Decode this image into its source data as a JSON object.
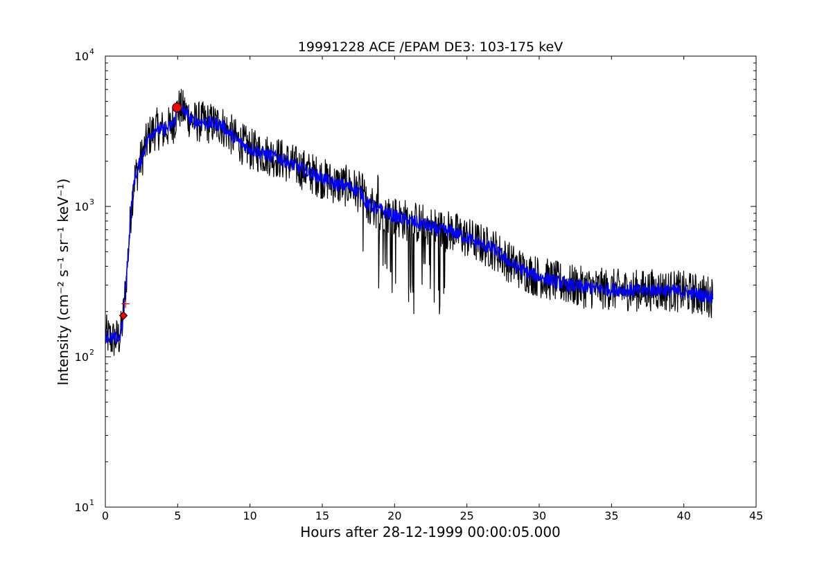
{
  "chart_data": {
    "type": "line",
    "title": "19991228 ACE /EPAM DE3: 103-175 keV",
    "xlabel": "Hours after 28-12-1999 00:00:05.000",
    "ylabel": "Intensity (cm⁻² s⁻¹ sr⁻¹ keV⁻¹)",
    "xlim": [
      0,
      45
    ],
    "ylim": [
      10,
      10000
    ],
    "yscale": "log",
    "grid": false,
    "x_ticks": [
      "0",
      "5",
      "10",
      "15",
      "20",
      "25",
      "30",
      "35",
      "40",
      "45"
    ],
    "y_ticks": [
      {
        "base": "10",
        "exp": "1"
      },
      {
        "base": "10",
        "exp": "2"
      },
      {
        "base": "10",
        "exp": "3"
      },
      {
        "base": "10",
        "exp": "4"
      }
    ],
    "series": [
      {
        "role": "raw",
        "color": "#000000",
        "x": [
          0,
          0.5,
          1.0,
          1.2,
          1.5,
          1.8,
          2.0,
          2.5,
          3.0,
          3.5,
          4.0,
          4.5,
          4.8,
          5.0,
          5.5,
          6.0,
          7.0,
          8.0,
          9.0,
          10.0,
          12.0,
          14.0,
          16.0,
          17.0,
          17.8,
          18.0,
          19.0,
          20.0,
          21.0,
          22.0,
          23.0,
          24.0,
          25.0,
          26.0,
          27.0,
          28.0,
          29.0,
          30.0,
          31.0,
          32.0,
          33.0,
          34.0,
          35.0,
          36.0,
          37.0,
          38.0,
          39.0,
          40.0,
          41.0,
          42.0
        ],
        "y": [
          140,
          130,
          135,
          170,
          380,
          1000,
          1500,
          2100,
          2900,
          3300,
          3200,
          3400,
          3700,
          4500,
          4300,
          3700,
          3600,
          3500,
          2800,
          2400,
          2100,
          1700,
          1400,
          1350,
          1200,
          1050,
          950,
          860,
          800,
          760,
          700,
          680,
          620,
          560,
          510,
          420,
          370,
          340,
          320,
          300,
          290,
          285,
          280,
          278,
          275,
          280,
          275,
          270,
          260,
          250
        ]
      },
      {
        "role": "smoothed",
        "color": "#0000ff",
        "x": [
          0,
          0.5,
          1.0,
          1.2,
          1.5,
          1.8,
          2.0,
          2.5,
          3.0,
          3.5,
          4.0,
          4.5,
          4.8,
          5.0,
          5.5,
          6.0,
          7.0,
          8.0,
          9.0,
          10.0,
          12.0,
          14.0,
          16.0,
          17.0,
          17.8,
          18.0,
          19.0,
          20.0,
          21.0,
          22.0,
          23.0,
          24.0,
          25.0,
          26.0,
          27.0,
          28.0,
          29.0,
          30.0,
          31.0,
          32.0,
          33.0,
          34.0,
          35.0,
          36.0,
          37.0,
          38.0,
          39.0,
          40.0,
          41.0,
          42.0
        ],
        "y": [
          140,
          130,
          135,
          170,
          380,
          1000,
          1500,
          2100,
          2900,
          3300,
          3200,
          3400,
          3700,
          4500,
          4300,
          3700,
          3600,
          3500,
          2800,
          2400,
          2100,
          1700,
          1400,
          1350,
          1200,
          1050,
          950,
          860,
          800,
          760,
          700,
          680,
          620,
          560,
          510,
          420,
          370,
          340,
          320,
          300,
          290,
          285,
          280,
          278,
          275,
          280,
          275,
          270,
          260,
          250
        ]
      }
    ],
    "markers": [
      {
        "x": 4.95,
        "y": 4550,
        "shape": "circle",
        "color": "#ff0000"
      },
      {
        "x": 1.25,
        "y": 188,
        "shape": "diamond",
        "color": "#ff0000"
      },
      {
        "x": 1.4,
        "y": 225,
        "shape": "plus",
        "color": "#ff0000"
      }
    ]
  }
}
